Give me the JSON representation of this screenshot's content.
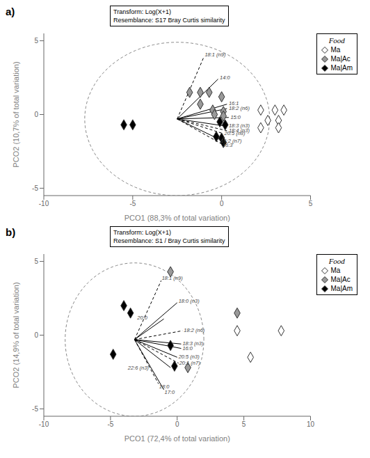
{
  "chart_data": [
    {
      "type": "scatter",
      "title": "a)",
      "annotation": "Transform: Log(X+1)\nResemblance: S17 Bray Curtis similarity",
      "x_label": "PCO1 (88,3% of total variation)",
      "y_label": "PCO2 (10,7% of total variation)",
      "xlim": [
        -10,
        5
      ],
      "ylim": [
        -5.5,
        5.5
      ],
      "xticks": [
        -10,
        -5,
        0,
        5
      ],
      "yticks": [
        -5,
        0,
        5
      ],
      "grid": false,
      "legend": "right",
      "legend_title": "Food",
      "marker": "diamond",
      "series": [
        {
          "name": "Ma",
          "color": "#ffffff",
          "points": [
            [
              2.2,
              0.3
            ],
            [
              3.0,
              0.3
            ],
            [
              3.5,
              0.3
            ],
            [
              2.6,
              -0.4
            ],
            [
              3.2,
              -0.4
            ],
            [
              2.2,
              -0.9
            ],
            [
              3.2,
              -0.9
            ]
          ]
        },
        {
          "name": "Ma|Ac",
          "color": "#999999",
          "points": [
            [
              -1.8,
              1.5
            ],
            [
              -1.2,
              1.5
            ],
            [
              -0.7,
              1.5
            ],
            [
              0.0,
              1.2
            ],
            [
              -1.2,
              0.7
            ],
            [
              -0.5,
              0.3
            ],
            [
              0.1,
              0.2
            ],
            [
              -0.4,
              0.0
            ],
            [
              0.1,
              -0.1
            ]
          ]
        },
        {
          "name": "Ma|Am",
          "color": "#000000",
          "points": [
            [
              -5.5,
              -0.7
            ],
            [
              -5.0,
              -0.7
            ],
            [
              -0.1,
              -0.5
            ],
            [
              0.2,
              -0.7
            ],
            [
              -0.3,
              -1.5
            ],
            [
              0.0,
              -1.6
            ],
            [
              0.1,
              -1.9
            ]
          ]
        }
      ],
      "circle": {
        "center": [
          -2.5,
          -0.3
        ],
        "radius": 5.2,
        "line_style": "dashed"
      },
      "vector_origin": [
        -2.5,
        -0.3
      ],
      "vectors": [
        {
          "label": "18:1 (n9)",
          "dx": 1.5,
          "dy": 4.2,
          "line_style": "dashed",
          "label_offset": [
            0.05,
            0.15
          ]
        },
        {
          "label": "14:0",
          "dx": 2.3,
          "dy": 2.7,
          "line_style": "solid",
          "label_offset": [
            0.1,
            0.1
          ]
        },
        {
          "label": "16:1",
          "dx": 2.8,
          "dy": 1.0,
          "line_style": "solid",
          "label_offset": [
            0.1,
            0.05
          ]
        },
        {
          "label": "18:2 (n6)",
          "dx": 2.8,
          "dy": 0.7,
          "line_style": "solid",
          "label_offset": [
            0.1,
            0.0
          ]
        },
        {
          "label": "15:0",
          "dx": 2.9,
          "dy": 0.1,
          "line_style": "solid",
          "label_offset": [
            0.1,
            0.0
          ]
        },
        {
          "label": "18:3 (n3)",
          "dx": 2.8,
          "dy": -0.5,
          "line_style": "solid",
          "label_offset": [
            0.1,
            0.0
          ]
        },
        {
          "label": "18:4 (n3)",
          "dx": 2.8,
          "dy": -0.8,
          "line_style": "dashed",
          "label_offset": [
            0.1,
            0.0
          ]
        },
        {
          "label": "20:5 (n3)",
          "dx": 2.6,
          "dy": -1.0,
          "line_style": "dashed",
          "label_offset": [
            0.05,
            0.0
          ]
        },
        {
          "label": "16:2 (n7)",
          "dx": 2.4,
          "dy": -1.4,
          "line_style": "solid",
          "label_offset": [
            0.05,
            -0.1
          ]
        },
        {
          "label": "16:3",
          "dx": 2.5,
          "dy": -1.7,
          "line_style": "dashed",
          "label_offset": [
            0.05,
            -0.1
          ]
        }
      ]
    },
    {
      "type": "scatter",
      "title": "b)",
      "annotation": "Transform: Log(X+1)\nResemblance: S1 / Bray Curtis similarity",
      "x_label": "PCO1 (72,4% of total variation)",
      "y_label": "PCO2 (14,9% of total variation)",
      "xlim": [
        -10,
        10
      ],
      "ylim": [
        -5.5,
        5.5
      ],
      "xticks": [
        -10,
        -5,
        0,
        5,
        10
      ],
      "yticks": [
        -5,
        0,
        5
      ],
      "grid": false,
      "legend": "right",
      "legend_title": "Food",
      "marker": "diamond",
      "series": [
        {
          "name": "Ma",
          "color": "#ffffff",
          "points": [
            [
              4.5,
              0.3
            ],
            [
              7.8,
              0.3
            ],
            [
              5.5,
              -1.5
            ]
          ]
        },
        {
          "name": "Ma|Ac",
          "color": "#999999",
          "points": [
            [
              -0.5,
              4.3
            ],
            [
              4.5,
              1.5
            ],
            [
              0.8,
              -2.2
            ]
          ]
        },
        {
          "name": "Ma|Am",
          "color": "#000000",
          "points": [
            [
              -4.0,
              2.0
            ],
            [
              -3.5,
              1.5
            ],
            [
              -4.8,
              -1.3
            ],
            [
              -0.5,
              -0.7
            ],
            [
              -0.2,
              -2.1
            ]
          ]
        }
      ],
      "circle": {
        "center": [
          -3.2,
          -0.3
        ],
        "radius": 5.2,
        "line_style": "dashed"
      },
      "vector_origin": [
        -3.2,
        -0.3
      ],
      "vectors": [
        {
          "label": "18:1 (n9)",
          "dx": 2.0,
          "dy": 4.0,
          "line_style": "dashed",
          "label_offset": [
            0.05,
            0.15
          ]
        },
        {
          "label": "18:0 (n3)",
          "dx": 3.2,
          "dy": 2.5,
          "line_style": "solid",
          "label_offset": [
            0.1,
            0.1
          ]
        },
        {
          "label": "18:2 (n6)",
          "dx": 3.6,
          "dy": 0.6,
          "line_style": "dashed",
          "label_offset": [
            0.1,
            0.0
          ]
        },
        {
          "label": "20:0",
          "dx": 2.2,
          "dy": 1.4,
          "line_style": "solid",
          "label_offset": [
            -2.0,
            0.05
          ]
        },
        {
          "label": "18:3 (n3)",
          "dx": 3.5,
          "dy": -0.3,
          "line_style": "solid",
          "label_offset": [
            0.1,
            0.0
          ]
        },
        {
          "label": "16:0",
          "dx": 3.5,
          "dy": -0.6,
          "line_style": "solid",
          "label_offset": [
            0.1,
            0.0
          ]
        },
        {
          "label": "20:5 (n3)",
          "dx": 3.2,
          "dy": -1.2,
          "line_style": "solid",
          "label_offset": [
            0.1,
            0.0
          ]
        },
        {
          "label": "20:1 (n7)",
          "dx": 3.3,
          "dy": -1.6,
          "line_style": "dashed",
          "label_offset": [
            0.05,
            0.0
          ]
        },
        {
          "label": "22:6 (n3)",
          "dx": 2.7,
          "dy": -1.9,
          "line_style": "solid",
          "label_offset": [
            -3.2,
            -0.05
          ]
        },
        {
          "label": "18:0",
          "dx": 1.8,
          "dy": -3.0,
          "line_style": "dashed",
          "label_offset": [
            0.05,
            -0.2
          ]
        },
        {
          "label": "17:0",
          "dx": 2.2,
          "dy": -3.4,
          "line_style": "solid",
          "label_offset": [
            0.05,
            -0.2
          ]
        }
      ]
    }
  ]
}
